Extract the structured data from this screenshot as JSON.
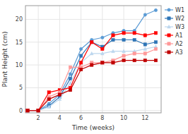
{
  "chart_data": {
    "type": "line",
    "xlabel": "Time (weeks)",
    "ylabel": "Plant Height (cm)",
    "x": [
      1,
      2,
      3,
      4,
      5,
      6,
      7,
      8,
      9,
      10,
      11,
      12,
      13
    ],
    "series": [
      {
        "name": "W1",
        "color": "#5B9BD5",
        "marker": "circle",
        "line_style": "solid",
        "values": [
          0,
          0,
          1.5,
          3.5,
          8.0,
          13.5,
          15.5,
          16.0,
          17.0,
          17.5,
          17.5,
          21.0,
          22.0
        ]
      },
      {
        "name": "W2",
        "color": "#2E75B6",
        "marker": "square",
        "line_style": "solid",
        "values": [
          0,
          0,
          1.0,
          3.0,
          7.0,
          12.0,
          15.0,
          14.0,
          15.5,
          15.5,
          15.5,
          14.5,
          15.0
        ]
      },
      {
        "name": "W3",
        "color": "#BDD7EE",
        "marker": "triangle",
        "line_style": "solid",
        "values": [
          0,
          0,
          0.8,
          2.5,
          6.0,
          10.5,
          12.5,
          12.5,
          13.0,
          13.0,
          13.0,
          13.5,
          14.0
        ]
      },
      {
        "name": "A1",
        "color": "#FF0000",
        "marker": "square",
        "line_style": "solid",
        "values": [
          0,
          0,
          4.0,
          4.5,
          5.0,
          10.5,
          15.0,
          13.5,
          16.5,
          17.0,
          17.0,
          16.5,
          17.0
        ]
      },
      {
        "name": "A2",
        "color": "#FF9999",
        "marker": "square",
        "line_style": "solid",
        "values": [
          0,
          0,
          3.0,
          4.0,
          9.5,
          9.5,
          10.5,
          10.5,
          11.0,
          12.0,
          12.5,
          12.5,
          13.5
        ]
      },
      {
        "name": "A3",
        "color": "#C00000",
        "marker": "square",
        "line_style": "solid",
        "values": [
          0,
          0,
          2.5,
          3.5,
          4.5,
          9.0,
          10.0,
          10.5,
          10.5,
          11.0,
          11.0,
          11.0,
          11.0
        ]
      }
    ],
    "xlim": [
      0.8,
      13.5
    ],
    "ylim": [
      -0.5,
      23
    ],
    "xticks": [
      2,
      4,
      6,
      8,
      10,
      12
    ],
    "yticks": [
      0,
      5,
      10,
      15,
      20
    ],
    "grid": true,
    "legend": "right"
  }
}
